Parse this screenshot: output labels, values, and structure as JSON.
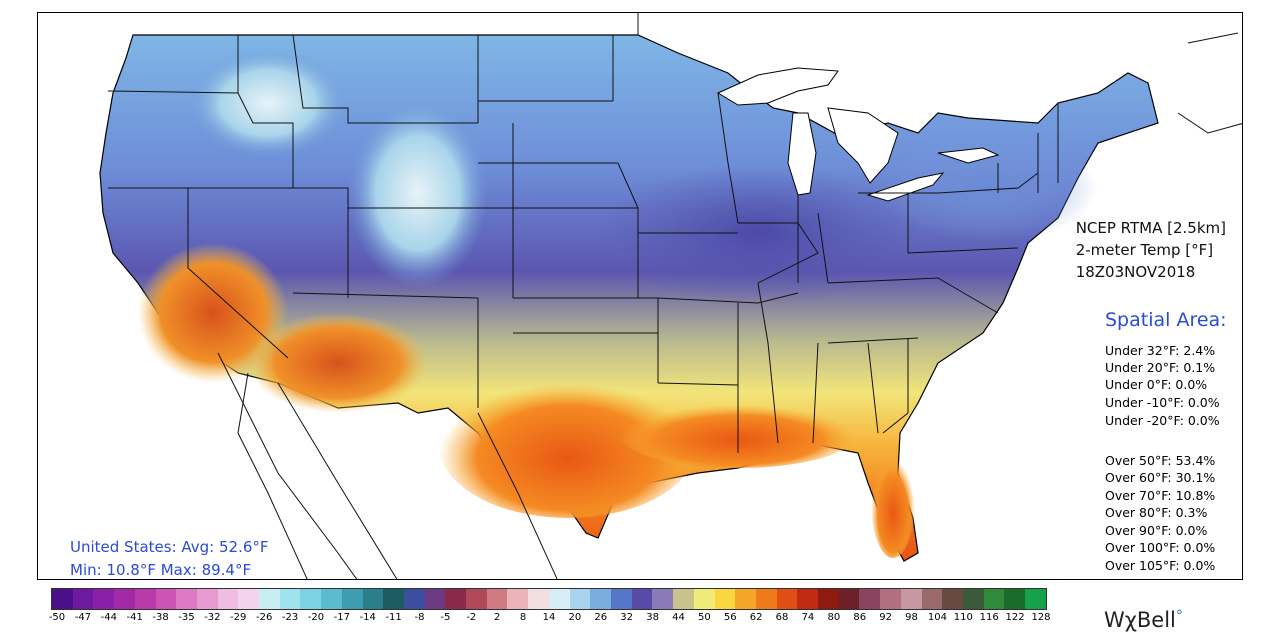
{
  "map": {
    "product": "NCEP RTMA [2.5km]",
    "variable": "2-meter Temp [°F]",
    "valid_time": "18Z03NOV2018"
  },
  "spatial": {
    "title": "Spatial Area:",
    "under": [
      "Under 32°F: 2.4%",
      "Under 20°F: 0.1%",
      "Under 0°F: 0.0%",
      "Under -10°F: 0.0%",
      "Under -20°F: 0.0%"
    ],
    "over": [
      "Over 50°F: 53.4%",
      "Over 60°F: 30.1%",
      "Over 70°F: 10.8%",
      "Over 80°F: 0.3%",
      "Over 90°F: 0.0%",
      "Over 100°F: 0.0%",
      "Over 105°F: 0.0%"
    ]
  },
  "summary": {
    "avg": "United States: Avg:  52.6°F",
    "minmax": "Min:  10.8°F Max:  89.4°F"
  },
  "colorbar": {
    "ticks": [
      "-50",
      "-47",
      "-44",
      "-41",
      "-38",
      "-35",
      "-32",
      "-29",
      "-26",
      "-23",
      "-20",
      "-17",
      "-14",
      "-11",
      "-8",
      "-5",
      "-2",
      "2",
      "8",
      "14",
      "20",
      "26",
      "32",
      "38",
      "44",
      "50",
      "56",
      "62",
      "68",
      "74",
      "80",
      "86",
      "92",
      "98",
      "104",
      "110",
      "116",
      "122",
      "128"
    ],
    "colors": [
      "#4b0f8a",
      "#6d1aa0",
      "#8a1fa8",
      "#a02aa8",
      "#b83aa8",
      "#cc55b3",
      "#dd78c4",
      "#e89bd2",
      "#efbde2",
      "#f2d5ea",
      "#c8eef4",
      "#9ee3ee",
      "#7dd3e3",
      "#5bbbcf",
      "#3e9db0",
      "#2b7f8a",
      "#1d5d62",
      "#3c4ea0",
      "#6d3a86",
      "#8a2a4a",
      "#b0485a",
      "#d07a84",
      "#ecb3b8",
      "#f3dfe0",
      "#d8eef6",
      "#a9d3ee",
      "#7aaedf",
      "#5676c8",
      "#5a4aa8",
      "#8a7ab8",
      "#c7c28e",
      "#f0ea78",
      "#f7d640",
      "#f7a52a",
      "#ef7a1a",
      "#e04e14",
      "#c02a12",
      "#8e1a10",
      "#6e2028",
      "#8a4460",
      "#b07080",
      "#c898a0",
      "#9a6a6a",
      "#6a4a40",
      "#3a5a3a",
      "#2f8a3a",
      "#1b6b2c",
      "#14a24a"
    ]
  },
  "brand": {
    "name": "WχBell",
    "dot": "°"
  }
}
